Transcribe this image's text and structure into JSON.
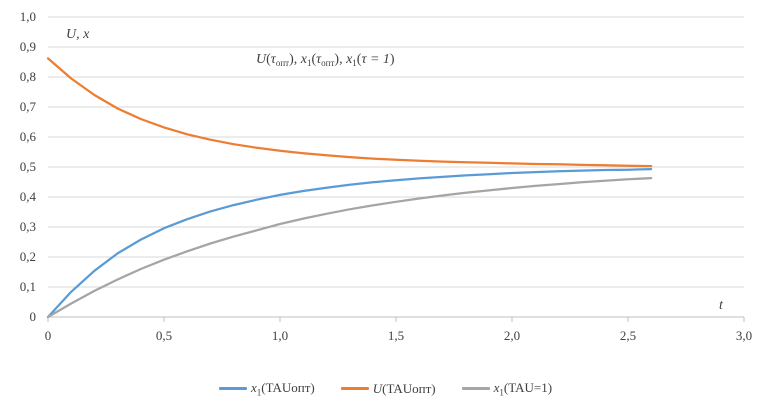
{
  "chart_data": {
    "type": "line",
    "title": "",
    "xlabel": "t",
    "ylabel": "U, x",
    "xlim": [
      0,
      3.0
    ],
    "ylim": [
      0,
      1.0
    ],
    "x_ticks": [
      "0",
      "0,5",
      "1,0",
      "1,5",
      "2,0",
      "2,5",
      "3,0"
    ],
    "y_ticks": [
      "0",
      "0,1",
      "0,2",
      "0,3",
      "0,4",
      "0,5",
      "0,6",
      "0,7",
      "0,8",
      "0,9",
      "1,0"
    ],
    "grid": "horizontal",
    "legend_position": "bottom",
    "annotation": {
      "sym_U": "U",
      "tau": "τ",
      "opt": "опт",
      "sym_x": "x",
      "sub_1": "1",
      "tau_eq": "τ = 1",
      "sep": ", ",
      "lparen": "(",
      "rparen": ")"
    },
    "x": [
      0,
      0.1,
      0.2,
      0.3,
      0.4,
      0.5,
      0.6,
      0.7,
      0.8,
      0.9,
      1.0,
      1.1,
      1.2,
      1.3,
      1.4,
      1.5,
      1.6,
      1.7,
      1.8,
      1.9,
      2.0,
      2.1,
      2.2,
      2.3,
      2.4,
      2.5,
      2.6
    ],
    "series": [
      {
        "name": "x1(TAUопт)",
        "legend_sym": "x",
        "legend_sub": "1",
        "legend_rest": "(TAUопт)",
        "color": "#5b9bd5",
        "values": [
          0,
          0.084,
          0.154,
          0.212,
          0.258,
          0.296,
          0.326,
          0.352,
          0.373,
          0.391,
          0.407,
          0.42,
          0.431,
          0.441,
          0.449,
          0.456,
          0.462,
          0.467,
          0.472,
          0.476,
          0.48,
          0.483,
          0.486,
          0.488,
          0.49,
          0.491,
          0.493
        ]
      },
      {
        "name": "U(TAUопт)",
        "legend_sym": "U",
        "legend_sub": "",
        "legend_rest": "(TAUопт)",
        "color": "#ed7d31",
        "values": [
          0.862,
          0.795,
          0.74,
          0.695,
          0.66,
          0.632,
          0.609,
          0.591,
          0.576,
          0.564,
          0.554,
          0.546,
          0.539,
          0.533,
          0.528,
          0.524,
          0.521,
          0.518,
          0.516,
          0.514,
          0.512,
          0.51,
          0.509,
          0.507,
          0.506,
          0.504,
          0.503
        ]
      },
      {
        "name": "x1(TAU=1)",
        "legend_sym": "x",
        "legend_sub": "1",
        "legend_rest": "(TAU=1)",
        "color": "#a5a5a5",
        "values": [
          0,
          0.045,
          0.087,
          0.125,
          0.16,
          0.191,
          0.219,
          0.245,
          0.268,
          0.289,
          0.31,
          0.328,
          0.344,
          0.359,
          0.372,
          0.384,
          0.395,
          0.405,
          0.414,
          0.422,
          0.43,
          0.437,
          0.443,
          0.449,
          0.454,
          0.459,
          0.463
        ]
      }
    ]
  }
}
